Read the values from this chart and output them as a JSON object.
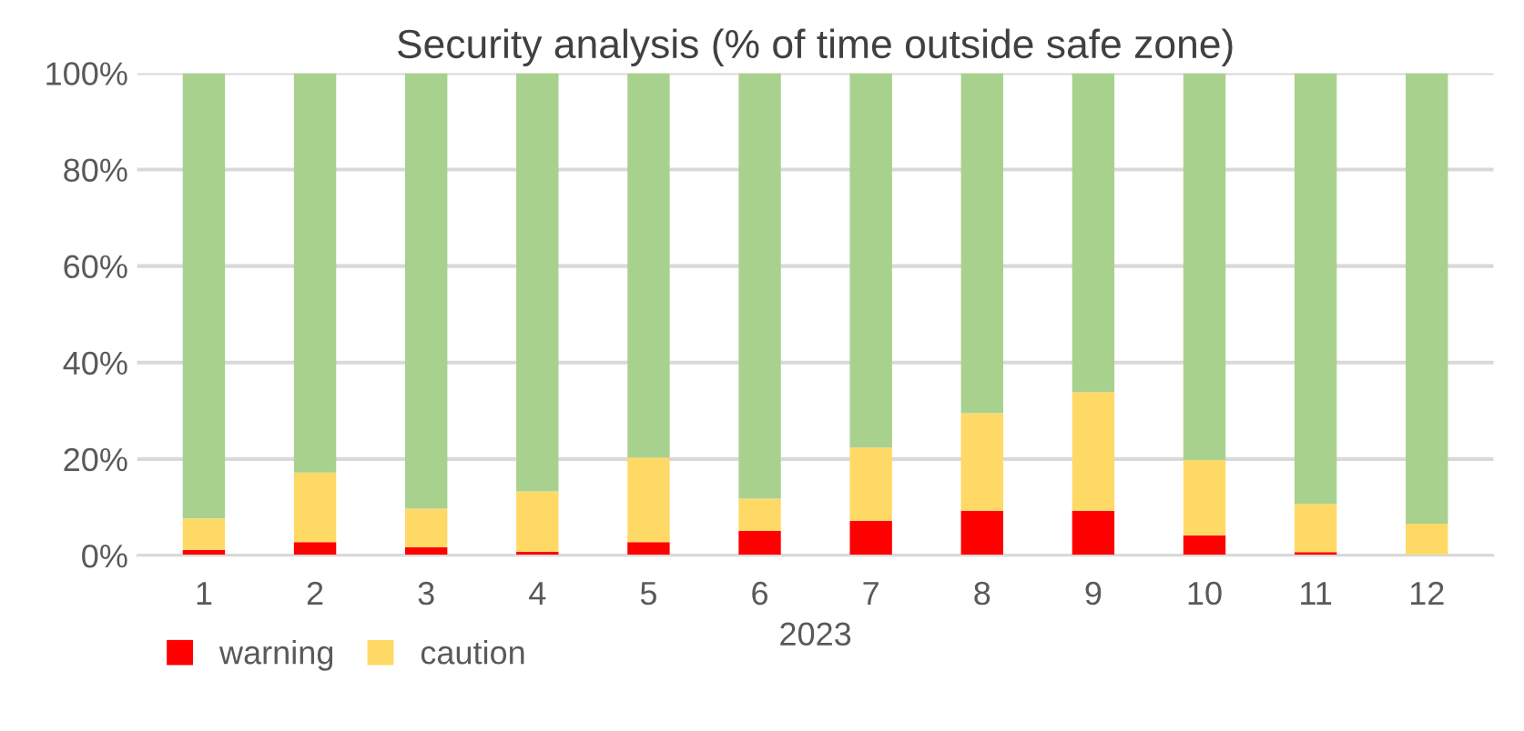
{
  "chart_data": {
    "type": "bar",
    "title": "Security analysis (% of time outside safe zone)",
    "xlabel": "2023",
    "categories": [
      "1",
      "2",
      "3",
      "4",
      "5",
      "6",
      "7",
      "8",
      "9",
      "10",
      "11",
      "12"
    ],
    "stacked": true,
    "series": [
      {
        "name": "warning",
        "color": "#ff0000",
        "values": [
          1.2,
          2.8,
          1.7,
          0.8,
          2.8,
          5.1,
          7.2,
          9.3,
          9.3,
          4.2,
          0.7,
          0
        ]
      },
      {
        "name": "caution",
        "color": "#ffd966",
        "values": [
          6.5,
          14.4,
          8.0,
          12.5,
          17.5,
          6.7,
          15.2,
          20.2,
          24.6,
          15.6,
          10.0,
          6.6
        ]
      },
      {
        "color": "#a9d18e",
        "values": [
          92.3,
          82.8,
          90.3,
          86.7,
          79.7,
          88.2,
          77.6,
          70.5,
          66.1,
          80.2,
          89.3,
          93.4
        ]
      }
    ],
    "ylim": [
      0,
      100
    ],
    "yticks": [
      {
        "value": 0,
        "label": "0%"
      },
      {
        "value": 20,
        "label": "20%"
      },
      {
        "value": 40,
        "label": "40%"
      },
      {
        "value": 60,
        "label": "60%"
      },
      {
        "value": 80,
        "label": "80%"
      },
      {
        "value": 100,
        "label": "100%"
      }
    ],
    "grid": "y",
    "legend": "bottom"
  }
}
